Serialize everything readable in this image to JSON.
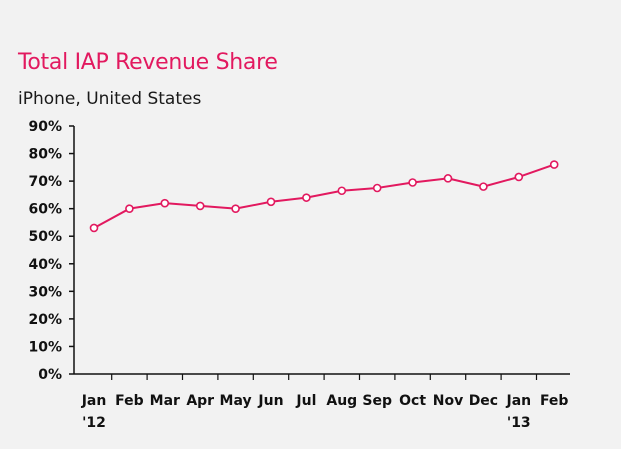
{
  "chart_data": {
    "type": "line",
    "title": "Total IAP Revenue Share",
    "subtitle": "iPhone, United States",
    "xlabel": "",
    "ylabel": "",
    "categories": [
      "Jan",
      "Feb",
      "Mar",
      "Apr",
      "May",
      "Jun",
      "Jul",
      "Aug",
      "Sep",
      "Oct",
      "Nov",
      "Dec",
      "Jan",
      "Feb"
    ],
    "category_sublabels": [
      "'12",
      "",
      "",
      "",
      "",
      "",
      "",
      "",
      "",
      "",
      "",
      "",
      "'13",
      ""
    ],
    "series": [
      {
        "values": [
          53,
          60,
          62,
          61,
          60,
          62.5,
          64,
          66.5,
          67.5,
          69.5,
          71,
          68,
          71.5,
          76
        ]
      }
    ],
    "ylim": [
      0,
      90
    ],
    "yticks": [
      0,
      10,
      20,
      30,
      40,
      50,
      60,
      70,
      80,
      90
    ],
    "ytick_labels": [
      "0%",
      "10%",
      "20%",
      "30%",
      "40%",
      "50%",
      "60%",
      "70%",
      "80%",
      "90%"
    ],
    "grid": false,
    "legend": "none",
    "colors": {
      "line": "#e2195f",
      "marker_fill": "#ffffff",
      "axis": "#111111",
      "background": "#f2f2f2"
    }
  }
}
